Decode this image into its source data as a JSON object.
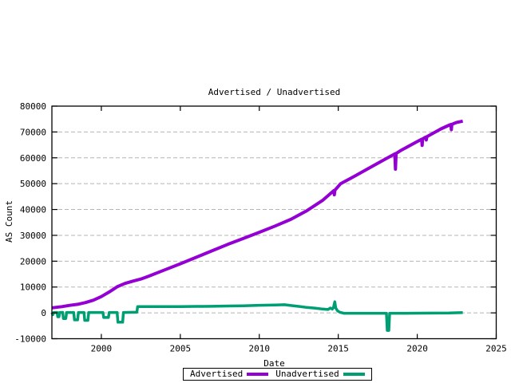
{
  "chart_data": {
    "type": "line",
    "title": "Advertised / Unadvertised",
    "xlabel": "Date",
    "ylabel": "AS Count",
    "xlim": [
      1996.87,
      2025
    ],
    "ylim": [
      -10000,
      80000
    ],
    "xticks": [
      2000,
      2005,
      2010,
      2015,
      2020,
      2025
    ],
    "yticks": [
      -10000,
      0,
      10000,
      20000,
      30000,
      40000,
      50000,
      60000,
      70000,
      80000
    ],
    "grid": "horizontal-dashed",
    "grid_color": "#b5b5b5",
    "axis_color": "#000000",
    "background_color": "#ffffff",
    "legend_position": "bottom-center-boxed",
    "series": [
      {
        "name": "Advertised",
        "color": "#9400d3",
        "width": 4,
        "points": [
          [
            1996.87,
            1950
          ],
          [
            1997.5,
            2400
          ],
          [
            1998.0,
            2900
          ],
          [
            1998.5,
            3300
          ],
          [
            1999.0,
            4000
          ],
          [
            1999.5,
            4900
          ],
          [
            2000.0,
            6300
          ],
          [
            2000.5,
            8100
          ],
          [
            2001.0,
            10100
          ],
          [
            2001.5,
            11400
          ],
          [
            2002.0,
            12300
          ],
          [
            2002.5,
            13100
          ],
          [
            2003.0,
            14200
          ],
          [
            2004.0,
            16600
          ],
          [
            2005.0,
            19000
          ],
          [
            2006.0,
            21500
          ],
          [
            2007.0,
            24000
          ],
          [
            2008.0,
            26500
          ],
          [
            2009.0,
            28800
          ],
          [
            2010.0,
            31200
          ],
          [
            2011.0,
            33600
          ],
          [
            2012.0,
            36200
          ],
          [
            2013.0,
            39500
          ],
          [
            2014.0,
            43500
          ],
          [
            2014.72,
            47300
          ],
          [
            2014.75,
            45700
          ],
          [
            2014.79,
            47500
          ],
          [
            2015.15,
            50000
          ],
          [
            2016.0,
            52800
          ],
          [
            2017.0,
            56200
          ],
          [
            2018.0,
            59600
          ],
          [
            2018.58,
            61500
          ],
          [
            2018.62,
            55600
          ],
          [
            2018.66,
            61700
          ],
          [
            2019.0,
            63000
          ],
          [
            2020.0,
            66300
          ],
          [
            2020.28,
            67200
          ],
          [
            2020.31,
            64800
          ],
          [
            2020.34,
            67300
          ],
          [
            2020.53,
            68000
          ],
          [
            2020.57,
            66900
          ],
          [
            2020.61,
            68200
          ],
          [
            2021.0,
            69500
          ],
          [
            2021.5,
            71200
          ],
          [
            2022.0,
            72600
          ],
          [
            2022.13,
            72900
          ],
          [
            2022.16,
            70900
          ],
          [
            2022.19,
            72950
          ],
          [
            2022.5,
            73700
          ],
          [
            2022.88,
            74200
          ]
        ]
      },
      {
        "name": "Unadvertised",
        "color": "#009e73",
        "width": 3.5,
        "points": [
          [
            1996.87,
            150
          ],
          [
            1996.93,
            -700
          ],
          [
            1996.99,
            150
          ],
          [
            1997.2,
            150
          ],
          [
            1997.24,
            -1500
          ],
          [
            1997.32,
            -1500
          ],
          [
            1997.36,
            150
          ],
          [
            1997.55,
            200
          ],
          [
            1997.6,
            -2200
          ],
          [
            1997.75,
            -2200
          ],
          [
            1997.8,
            150
          ],
          [
            1998.25,
            150
          ],
          [
            1998.3,
            -2700
          ],
          [
            1998.5,
            -2700
          ],
          [
            1998.55,
            150
          ],
          [
            1998.9,
            150
          ],
          [
            1998.95,
            -2900
          ],
          [
            1999.15,
            -2900
          ],
          [
            1999.2,
            150
          ],
          [
            2000.1,
            150
          ],
          [
            2000.15,
            -1800
          ],
          [
            2000.45,
            -1800
          ],
          [
            2000.5,
            150
          ],
          [
            2001.0,
            150
          ],
          [
            2001.05,
            -3600
          ],
          [
            2001.35,
            -3600
          ],
          [
            2001.4,
            150
          ],
          [
            2002.25,
            250
          ],
          [
            2002.3,
            2400
          ],
          [
            2003.0,
            2450
          ],
          [
            2004.0,
            2400
          ],
          [
            2005.0,
            2450
          ],
          [
            2006.0,
            2500
          ],
          [
            2007.0,
            2550
          ],
          [
            2008.0,
            2650
          ],
          [
            2009.0,
            2750
          ],
          [
            2010.0,
            2950
          ],
          [
            2011.0,
            3050
          ],
          [
            2011.6,
            3150
          ],
          [
            2012.0,
            2850
          ],
          [
            2012.5,
            2500
          ],
          [
            2013.0,
            2100
          ],
          [
            2013.5,
            1850
          ],
          [
            2014.0,
            1500
          ],
          [
            2014.35,
            1300
          ],
          [
            2014.5,
            1900
          ],
          [
            2014.62,
            1450
          ],
          [
            2014.7,
            2100
          ],
          [
            2014.78,
            4300
          ],
          [
            2014.84,
            1900
          ],
          [
            2014.95,
            800
          ],
          [
            2015.1,
            250
          ],
          [
            2015.35,
            -150
          ],
          [
            2016.0,
            -150
          ],
          [
            2017.0,
            -150
          ],
          [
            2018.05,
            -150
          ],
          [
            2018.1,
            -6800
          ],
          [
            2018.2,
            -6800
          ],
          [
            2018.25,
            -150
          ],
          [
            2019.0,
            -150
          ],
          [
            2020.0,
            -120
          ],
          [
            2021.0,
            -100
          ],
          [
            2022.0,
            -60
          ],
          [
            2022.88,
            100
          ]
        ]
      }
    ]
  }
}
